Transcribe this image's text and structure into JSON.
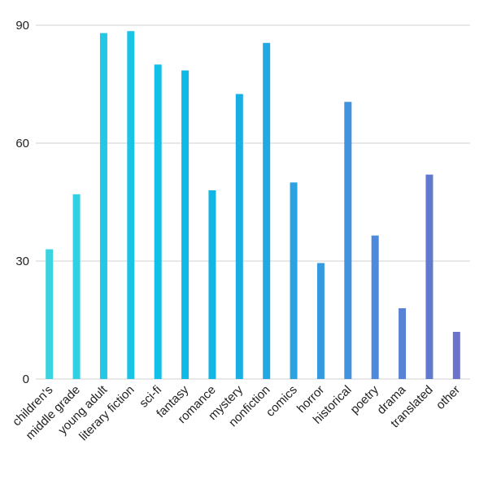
{
  "chart_data": {
    "type": "bar",
    "title": "",
    "xlabel": "",
    "ylabel": "",
    "ylim": [
      0,
      90
    ],
    "yticks": [
      0,
      30,
      60,
      90
    ],
    "grid": true,
    "categories": [
      "children's",
      "middle grade",
      "young adult",
      "literary fiction",
      "sci-fi",
      "fantasy",
      "romance",
      "mystery",
      "nonfiction",
      "comics",
      "horror",
      "historical",
      "poetry",
      "drama",
      "translated",
      "other"
    ],
    "values": [
      33,
      47,
      88,
      88.5,
      80,
      78.5,
      48,
      72.5,
      85.5,
      50,
      29.5,
      70.5,
      36.5,
      18,
      52,
      12
    ],
    "colors": [
      "#3ad3e0",
      "#33cfe3",
      "#22c8e4",
      "#1ac4e6",
      "#12bfe8",
      "#0fbbe6",
      "#12b6e5",
      "#18b0e4",
      "#22a9e3",
      "#2ba2e2",
      "#369ae0",
      "#4292de",
      "#4d8adb",
      "#5882d5",
      "#6279d0",
      "#6b72cc"
    ]
  }
}
